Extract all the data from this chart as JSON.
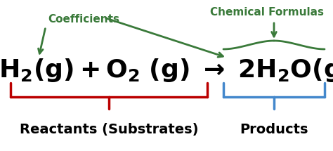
{
  "bg_color": "#ffffff",
  "green_color": "#3a7a3a",
  "red_color": "#bb0000",
  "blue_color": "#4488cc",
  "black_color": "#000000",
  "coefficients_label": "Coefficients",
  "chemical_formulas_label": "Chemical Formulas",
  "reactants_label": "Reactants (Substrates)",
  "products_label": "Products",
  "eq_fontsize": 26,
  "label_fontsize": 14,
  "annot_fontsize": 11
}
